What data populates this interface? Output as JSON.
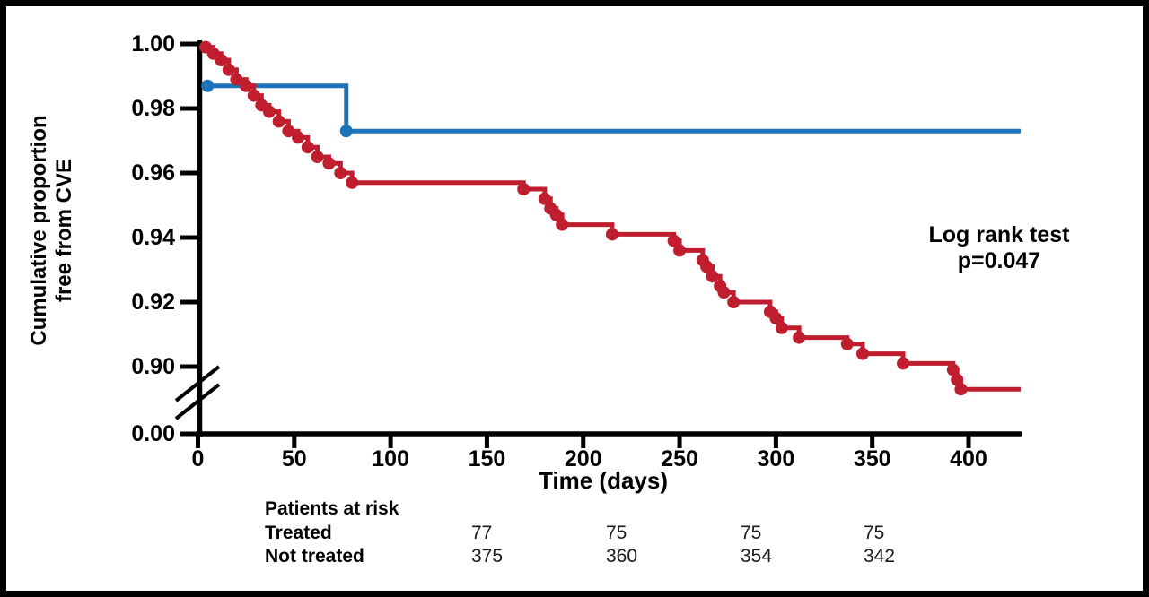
{
  "figure": {
    "y_axis_label_line1": "Cumulative proportion",
    "y_axis_label_line2": "free from CVE",
    "x_axis_label": "Time (days)",
    "annotation_line1": "Log rank test",
    "annotation_line2": "p=0.047"
  },
  "chart_data": {
    "type": "line",
    "subtype": "kaplan-meier-step-curve",
    "title": "",
    "xlabel": "Time (days)",
    "ylabel": "Cumulative proportion free from CVE",
    "xlim": [
      0,
      430
    ],
    "ylim_shown": [
      0.89,
      1.0
    ],
    "y_axis_break": true,
    "grid": false,
    "legend_position": "none",
    "annotation": "Log rank test p=0.047",
    "x_ticks": [
      0,
      50,
      100,
      150,
      200,
      250,
      300,
      350,
      400
    ],
    "y_ticks": [
      {
        "label": "1.00",
        "value": 1.0
      },
      {
        "label": "0.98",
        "value": 0.98
      },
      {
        "label": "0.96",
        "value": 0.96
      },
      {
        "label": "0.94",
        "value": 0.94
      },
      {
        "label": "0.92",
        "value": 0.92
      },
      {
        "label": "0.90",
        "value": 0.9
      },
      {
        "label": "0.00",
        "value": 0.0
      }
    ],
    "series": [
      {
        "name": "Treated",
        "color": "#1C73BB",
        "n_start": 77,
        "line_start_day": 2,
        "end_day": 427,
        "points": [
          [
            5,
            0.987
          ],
          [
            77,
            0.973
          ]
        ]
      },
      {
        "name": "Not treated",
        "color": "#C01E2F",
        "n_start": 375,
        "line_start_day": 1.5,
        "end_day": 427,
        "points": [
          [
            4,
            0.999
          ],
          [
            8,
            0.997
          ],
          [
            12,
            0.995
          ],
          [
            16,
            0.992
          ],
          [
            20,
            0.989
          ],
          [
            25,
            0.987
          ],
          [
            29,
            0.984
          ],
          [
            33,
            0.981
          ],
          [
            37,
            0.979
          ],
          [
            42,
            0.976
          ],
          [
            47,
            0.973
          ],
          [
            52,
            0.971
          ],
          [
            57,
            0.968
          ],
          [
            62,
            0.965
          ],
          [
            68,
            0.963
          ],
          [
            74,
            0.96
          ],
          [
            80,
            0.957
          ],
          [
            169,
            0.955
          ],
          [
            180,
            0.952
          ],
          [
            183,
            0.949
          ],
          [
            186,
            0.947
          ],
          [
            189,
            0.944
          ],
          [
            215,
            0.941
          ],
          [
            247,
            0.939
          ],
          [
            250,
            0.936
          ],
          [
            262,
            0.933
          ],
          [
            264,
            0.931
          ],
          [
            267,
            0.928
          ],
          [
            271,
            0.925
          ],
          [
            273,
            0.923
          ],
          [
            278,
            0.92
          ],
          [
            297,
            0.917
          ],
          [
            300,
            0.915
          ],
          [
            303,
            0.912
          ],
          [
            312,
            0.909
          ],
          [
            337,
            0.907
          ],
          [
            345,
            0.904
          ],
          [
            366,
            0.901
          ],
          [
            392,
            0.899
          ],
          [
            394,
            0.896
          ],
          [
            396,
            0.893
          ]
        ]
      }
    ]
  },
  "risk_table": {
    "title": "Patients at risk",
    "rows": [
      {
        "label": "Treated",
        "values": [
          "77",
          "75",
          "75",
          "75"
        ]
      },
      {
        "label": "Not treated",
        "values": [
          "375",
          "360",
          "354",
          "342"
        ]
      }
    ]
  }
}
